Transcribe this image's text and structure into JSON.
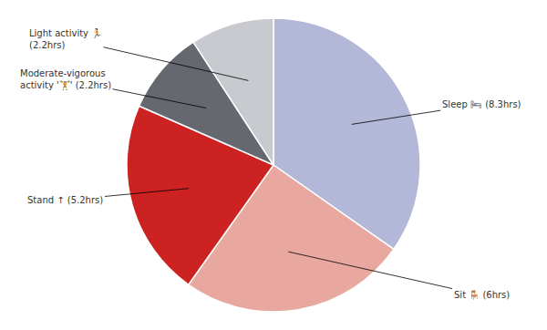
{
  "chart_data": {
    "type": "pie",
    "categories": [
      "Sleep 🛏 (8.3hrs)",
      "Sit 🪑 (6hrs)",
      "Stand ↑ (5.2hrs)",
      "Moderate-vigorous\nactivity '🏋' (2.2hrs)",
      "Light activity 🏃\n(2.2hrs)"
    ],
    "values": [
      8.3,
      6.0,
      5.2,
      2.2,
      2.2
    ],
    "colors": [
      "#b3b8d8",
      "#e8a8a0",
      "#cc2222",
      "#666870",
      "#c8cad0"
    ]
  }
}
